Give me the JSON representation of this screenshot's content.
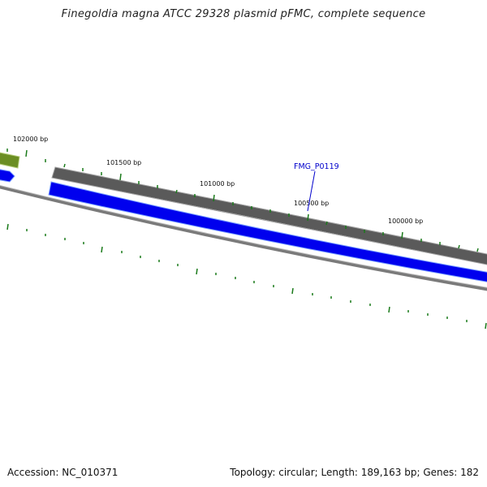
{
  "title": "Finegoldia magna ATCC 29328 plasmid pFMC, complete sequence",
  "footer": {
    "accession": "Accession: NC_010371",
    "summary": "Topology: circular; Length: 189,163 bp; Genes: 182"
  },
  "scale_labels": [
    "102000 bp",
    "101500 bp",
    "101000 bp",
    "100500 bp",
    "100000 bp"
  ],
  "gene_label": "FMG_P0119",
  "colors": {
    "forward_gene_green": "#6b8e23",
    "forward_gene_gray": "#5a5a5a",
    "reverse_gene_blue": "#0000ee",
    "backbone": "#7a7a7a",
    "ticks": "#1a7a1a",
    "gene_label": "#0000cc"
  }
}
